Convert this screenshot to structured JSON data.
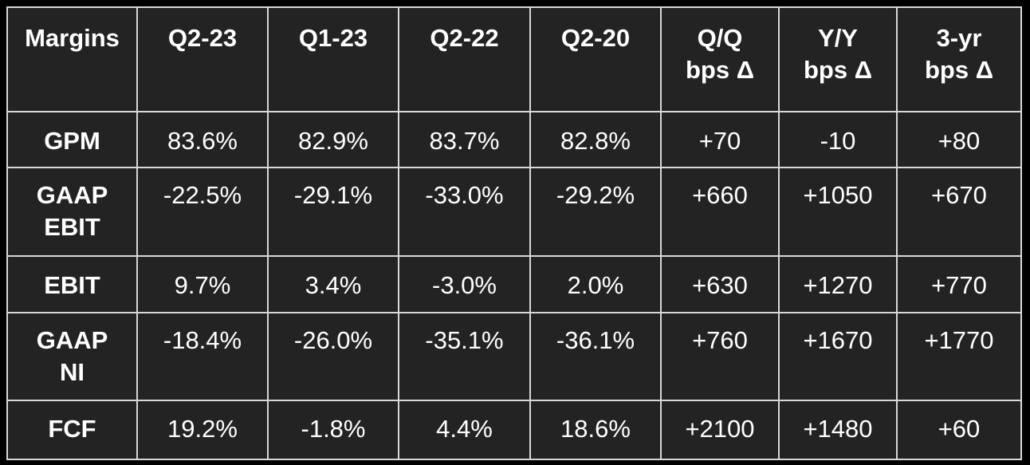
{
  "table": {
    "headers": [
      "Margins",
      "Q2-23",
      "Q1-23",
      "Q2-22",
      "Q2-20",
      "Q/Q bps Δ",
      "Y/Y bps Δ",
      "3-yr bps Δ"
    ],
    "header_lines": [
      [
        "Margins"
      ],
      [
        "Q2-23"
      ],
      [
        "Q1-23"
      ],
      [
        "Q2-22"
      ],
      [
        "Q2-20"
      ],
      [
        "Q/Q",
        "bps Δ"
      ],
      [
        "Y/Y",
        "bps Δ"
      ],
      [
        "3-yr",
        "bps Δ"
      ]
    ],
    "rows": [
      {
        "label_lines": [
          "GPM"
        ],
        "values": [
          "83.6%",
          "82.9%",
          "83.7%",
          "82.8%",
          "+70",
          "-10",
          "+80"
        ]
      },
      {
        "label_lines": [
          "GAAP",
          "EBIT"
        ],
        "values": [
          "-22.5%",
          "-29.1%",
          "-33.0%",
          "-29.2%",
          "+660",
          "+1050",
          "+670"
        ]
      },
      {
        "label_lines": [
          "EBIT"
        ],
        "values": [
          "9.7%",
          "3.4%",
          "-3.0%",
          "2.0%",
          "+630",
          "+1270",
          "+770"
        ]
      },
      {
        "label_lines": [
          "GAAP",
          "NI"
        ],
        "values": [
          "-18.4%",
          "-26.0%",
          "-35.1%",
          "-36.1%",
          "+760",
          "+1670",
          "+1770"
        ]
      },
      {
        "label_lines": [
          "FCF"
        ],
        "values": [
          "19.2%",
          "-1.8%",
          "4.4%",
          "18.6%",
          "+2100",
          "+1480",
          "+60"
        ]
      }
    ]
  },
  "colors": {
    "page_background": "#000000",
    "table_background": "#232323",
    "grid_lines": "#d8d8d8",
    "text": "#ffffff"
  }
}
